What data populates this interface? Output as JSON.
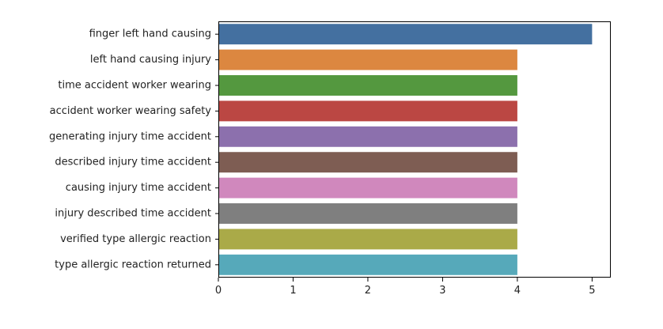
{
  "chart_data": {
    "type": "bar",
    "orientation": "horizontal",
    "categories": [
      "finger left hand causing",
      "left hand causing injury",
      "time accident worker wearing",
      "accident worker wearing safety",
      "generating injury time accident",
      "described injury time accident",
      "causing injury time accident",
      "injury described time accident",
      "verified type allergic reaction",
      "type allergic reaction returned"
    ],
    "values": [
      5,
      4,
      4,
      4,
      4,
      4,
      4,
      4,
      4,
      4
    ],
    "colors": [
      "#4470a0",
      "#dc8740",
      "#54983f",
      "#bb4743",
      "#8c70ad",
      "#7e5d53",
      "#d088bd",
      "#7f7f7f",
      "#aaaa48",
      "#56a9ba"
    ],
    "xlim": [
      0,
      5.25
    ],
    "xticks": [
      0,
      1,
      2,
      3,
      4,
      5
    ],
    "title": "",
    "xlabel": "",
    "ylabel": "",
    "grid": false
  }
}
